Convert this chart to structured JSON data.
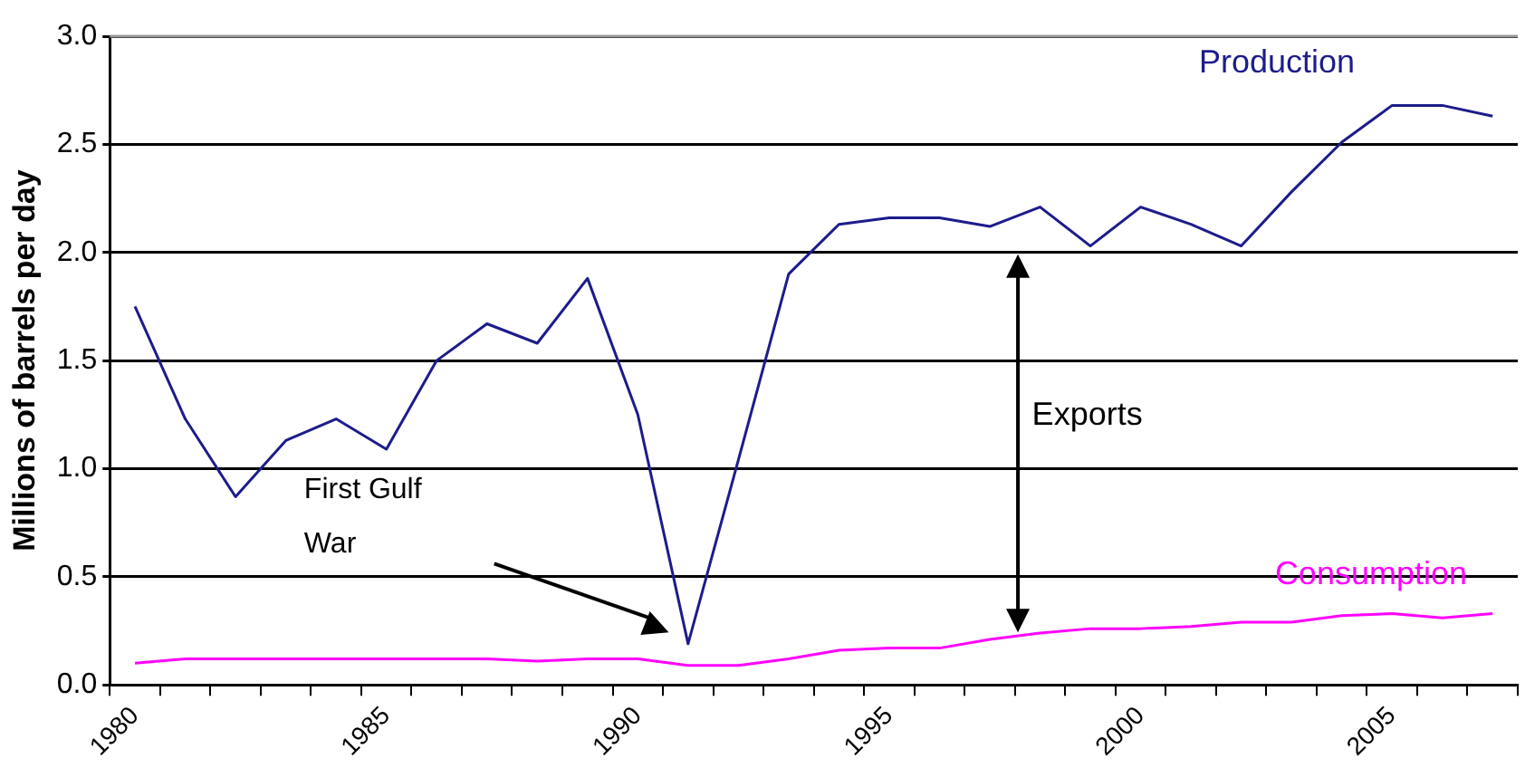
{
  "chart_data": {
    "type": "line",
    "ylabel": "Millions of barrels per day",
    "categories": [
      "1980",
      null,
      null,
      null,
      null,
      "1985",
      null,
      null,
      null,
      null,
      "1990",
      null,
      null,
      null,
      null,
      "1995",
      null,
      null,
      null,
      null,
      "2000",
      null,
      null,
      null,
      null,
      "2005",
      null,
      null
    ],
    "series": [
      {
        "name": "Production",
        "color": "#1c1c8c",
        "values": [
          1.75,
          1.23,
          0.87,
          1.13,
          1.23,
          1.09,
          1.5,
          1.67,
          1.58,
          1.88,
          1.25,
          0.19,
          1.04,
          1.9,
          2.13,
          2.16,
          2.16,
          2.12,
          2.21,
          2.03,
          2.21,
          2.13,
          2.03,
          2.28,
          2.51,
          2.68,
          2.68,
          2.63
        ]
      },
      {
        "name": "Consumption",
        "color": "#ff00ff",
        "values": [
          0.1,
          0.12,
          0.12,
          0.12,
          0.12,
          0.12,
          0.12,
          0.12,
          0.11,
          0.12,
          0.12,
          0.09,
          0.09,
          0.12,
          0.16,
          0.17,
          0.17,
          0.21,
          0.24,
          0.26,
          0.26,
          0.27,
          0.29,
          0.29,
          0.32,
          0.33,
          0.31,
          0.33
        ]
      }
    ],
    "ylim": [
      0,
      3
    ],
    "yticks": [
      {
        "value": 0,
        "label": "0.0"
      },
      {
        "value": 0.5,
        "label": "0.5"
      },
      {
        "value": 1,
        "label": "1.0"
      },
      {
        "value": 1.5,
        "label": "1.5"
      },
      {
        "value": 2,
        "label": "2.0"
      },
      {
        "value": 2.5,
        "label": "2.5"
      },
      {
        "value": 3,
        "label": "3.0"
      }
    ],
    "grid": "y",
    "legend": false,
    "marker": "none",
    "line_style": "solid",
    "annotations": [
      "First Gulf War",
      "Exports"
    ]
  }
}
